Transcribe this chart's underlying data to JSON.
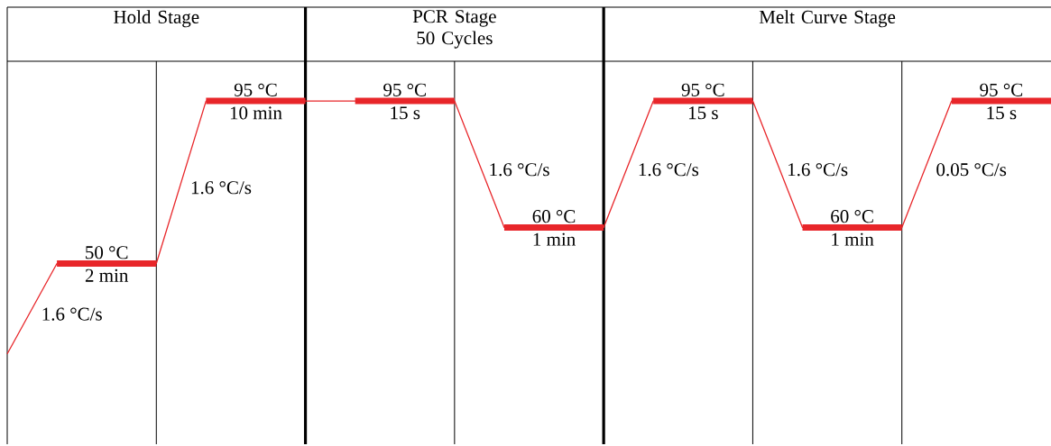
{
  "chart_data": {
    "type": "line",
    "categories": [
      null,
      null,
      null,
      null,
      null,
      null,
      null,
      null,
      null,
      null,
      null,
      null,
      null,
      null,
      null,
      null,
      null,
      null,
      null,
      null,
      null,
      null
    ],
    "ylim": [
      0,
      106
    ],
    "grid": "x",
    "series": [
      {
        "color": "#e8262a",
        "values": [
          25,
          50,
          50,
          50,
          95,
          95,
          95,
          95,
          95,
          95,
          60,
          60,
          60,
          95,
          95,
          95,
          60,
          60,
          60,
          95,
          95,
          95
        ],
        "value_labels": [
          null,
          null,
          "50 °C",
          null,
          null,
          "95 °C",
          null,
          null,
          "95 °C",
          null,
          null,
          "60 °C",
          null,
          null,
          "95 °C",
          null,
          null,
          "60 °C",
          null,
          null,
          "95 °C",
          null
        ]
      }
    ],
    "annotations": [
      "Hold Stage",
      "PCR Stage 50 Cycles",
      "Melt Curve Stage",
      "2 min",
      "10 min",
      "15 s",
      "1 min",
      "15 s",
      "1 min",
      "15 s",
      "1.6 °C/s",
      "1.6 °C/s",
      "1.6 °C/s",
      "1.6 °C/s",
      "1.6 °C/s",
      "0.05 °C/s"
    ]
  }
}
